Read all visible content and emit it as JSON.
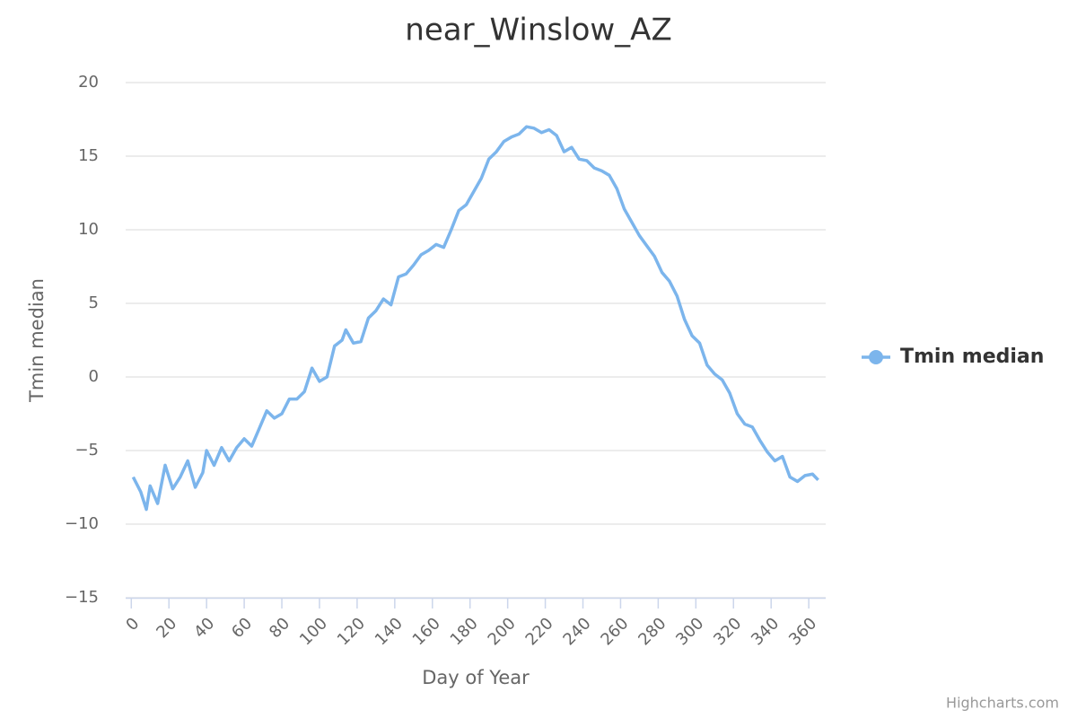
{
  "chart_data": {
    "type": "line",
    "title": "near_Winslow_AZ",
    "x_label": "Day of Year",
    "y_label": "Tmin median",
    "credits": "Highcharts.com",
    "x": [
      1,
      5,
      8,
      10,
      14,
      18,
      22,
      26,
      30,
      34,
      38,
      40,
      44,
      48,
      52,
      56,
      60,
      64,
      68,
      72,
      76,
      80,
      84,
      88,
      92,
      96,
      100,
      104,
      108,
      112,
      114,
      118,
      122,
      126,
      130,
      134,
      138,
      142,
      146,
      150,
      154,
      158,
      162,
      166,
      170,
      174,
      178,
      182,
      186,
      190,
      194,
      198,
      202,
      206,
      210,
      214,
      218,
      222,
      226,
      230,
      234,
      238,
      242,
      246,
      250,
      254,
      258,
      262,
      266,
      270,
      274,
      278,
      282,
      286,
      290,
      294,
      298,
      302,
      306,
      310,
      314,
      318,
      322,
      326,
      330,
      334,
      338,
      342,
      346,
      350,
      354,
      358,
      362,
      365
    ],
    "series": [
      {
        "name": "Tmin median",
        "color": "#7cb5ec",
        "values": [
          -6.8,
          -7.8,
          -9.0,
          -7.4,
          -8.6,
          -6.0,
          -7.6,
          -6.8,
          -5.7,
          -7.5,
          -6.5,
          -5.0,
          -6.0,
          -4.8,
          -5.7,
          -4.8,
          -4.2,
          -4.7,
          -3.5,
          -2.3,
          -2.8,
          -2.5,
          -1.5,
          -1.5,
          -1.0,
          0.6,
          -0.3,
          0.0,
          2.1,
          2.5,
          3.2,
          2.3,
          2.4,
          4.0,
          4.5,
          5.3,
          4.9,
          6.8,
          7.0,
          7.6,
          8.3,
          8.6,
          9.0,
          8.8,
          10.0,
          11.3,
          11.7,
          12.6,
          13.5,
          14.8,
          15.3,
          16.0,
          16.3,
          16.5,
          17.0,
          16.9,
          16.6,
          16.8,
          16.4,
          15.3,
          15.6,
          14.8,
          14.7,
          14.2,
          14.0,
          13.7,
          12.8,
          11.4,
          10.5,
          9.6,
          8.9,
          8.2,
          7.1,
          6.5,
          5.5,
          3.9,
          2.8,
          2.3,
          0.8,
          0.2,
          -0.2,
          -1.1,
          -2.5,
          -3.2,
          -3.4,
          -4.3,
          -5.1,
          -5.7,
          -5.4,
          -6.8,
          -7.1,
          -6.7,
          -6.6,
          -7.0
        ]
      }
    ],
    "xlim": [
      -3,
      369
    ],
    "xticks": [
      0,
      20,
      40,
      60,
      80,
      100,
      120,
      140,
      160,
      180,
      200,
      220,
      240,
      260,
      280,
      300,
      320,
      340,
      360
    ],
    "ylim": [
      -15,
      20
    ],
    "yticks": [
      {
        "value": -15,
        "label": "−15"
      },
      {
        "value": -10,
        "label": "−10"
      },
      {
        "value": -5,
        "label": "−5"
      },
      0,
      5,
      10,
      15,
      20
    ],
    "grid": true,
    "legend": "right"
  }
}
